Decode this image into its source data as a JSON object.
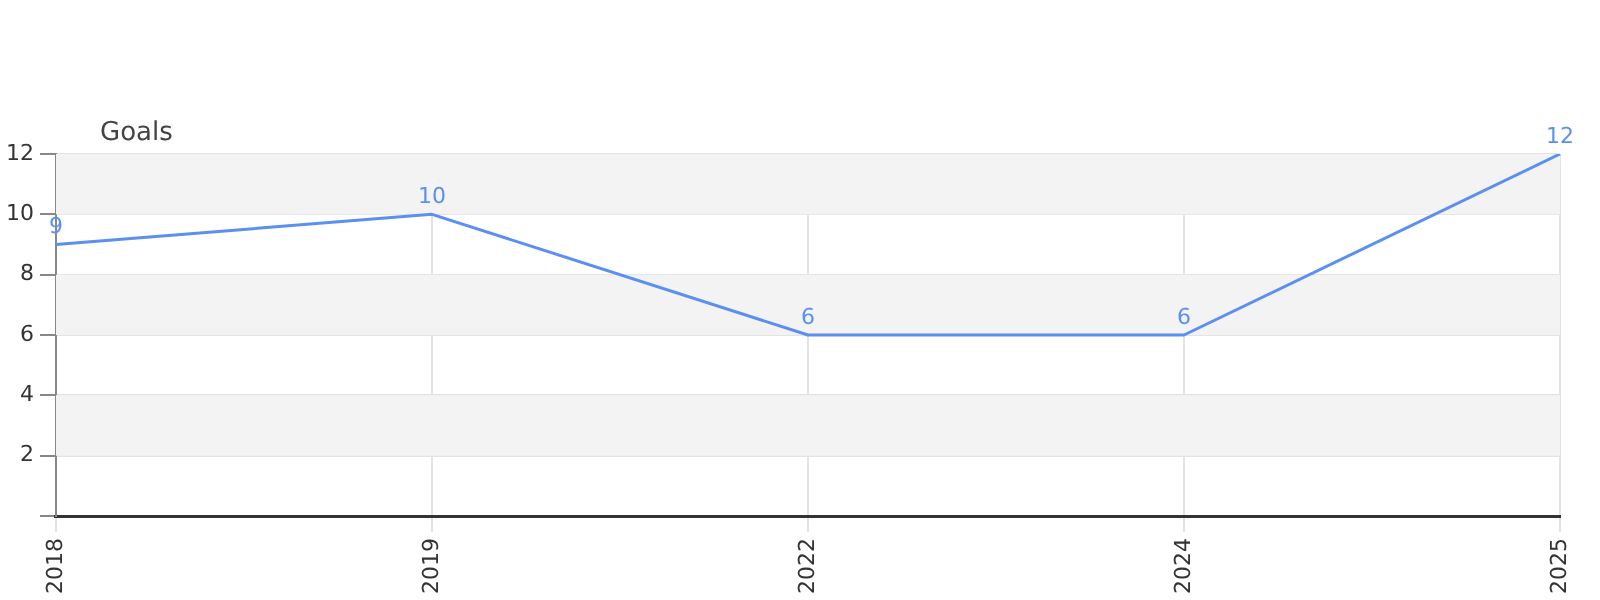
{
  "chart_data": {
    "type": "line",
    "ylabel": "Goals",
    "categories": [
      "2018",
      "2019",
      "2022",
      "2024",
      "2025"
    ],
    "series": [
      {
        "color": "#5b8ff0",
        "values": [
          9,
          10,
          6,
          6,
          12
        ]
      }
    ],
    "ylim": [
      0,
      12
    ],
    "yticks": [
      {
        "value": 0,
        "label": null
      },
      2,
      4,
      6,
      8,
      10,
      12
    ],
    "grid": true,
    "data_labels": true,
    "marker": "none",
    "line_style": "solid",
    "legend": false
  }
}
